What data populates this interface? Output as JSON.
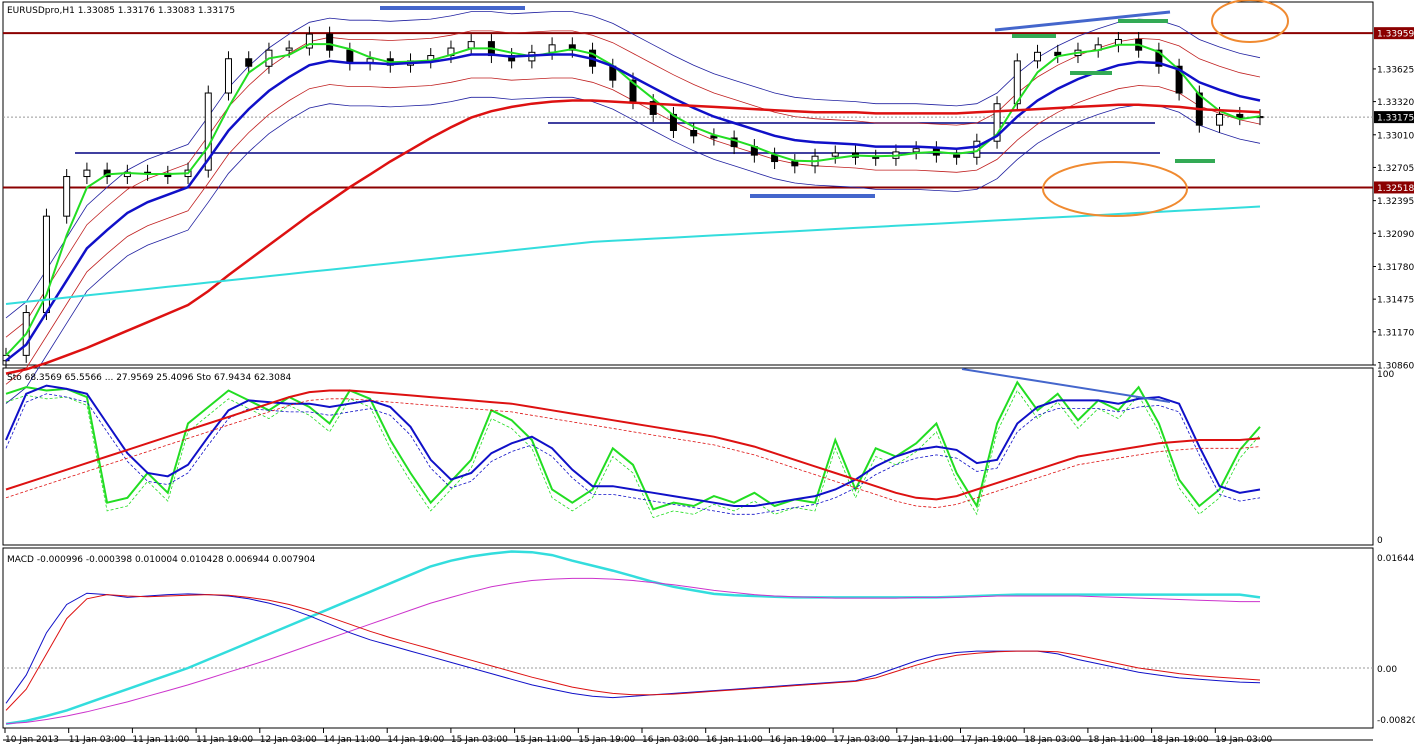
{
  "chart_data": [
    {
      "type": "line",
      "title": "EURUSDpro,H1  1.33085 1.33176 1.33083 1.33175",
      "yticks": [
        "1.33959",
        "1.33625",
        "1.33320",
        "1.33175",
        "1.33010",
        "1.32705",
        "1.32518",
        "1.32395",
        "1.32090",
        "1.31780",
        "1.31475",
        "1.31170",
        "1.30860"
      ],
      "highlighted_levels": [
        {
          "value": "1.33959",
          "color": "#8b0000"
        },
        {
          "value": "1.33175",
          "color": "#000000"
        },
        {
          "value": "1.32518",
          "color": "#8b0000"
        }
      ],
      "series": [
        {
          "values": [
            1.3095,
            1.3135,
            1.3225,
            1.3262,
            1.3268,
            1.3262,
            1.3266,
            1.3265,
            1.3262,
            1.3268,
            1.334,
            1.3372,
            1.3365,
            1.338,
            1.3382,
            1.3395,
            1.338,
            1.3368,
            1.3372,
            1.3366,
            1.337,
            1.3375,
            1.3382,
            1.3388,
            1.3375,
            1.337,
            1.3378,
            1.3385,
            1.338,
            1.3365,
            1.3352,
            1.3332,
            1.332,
            1.3305,
            1.33,
            1.3298,
            1.329,
            1.3282,
            1.3276,
            1.3272,
            1.3281,
            1.3284,
            1.328,
            1.3279,
            1.3285,
            1.3288,
            1.3282,
            1.328,
            1.3295,
            1.333,
            1.337,
            1.3378,
            1.3375,
            1.338,
            1.3385,
            1.339,
            1.338,
            1.3365,
            1.334,
            1.331,
            1.332,
            1.3317,
            1.3318
          ]
        },
        {
          "values": [
            1.309,
            1.3105,
            1.3135,
            1.3165,
            1.3195,
            1.3212,
            1.3228,
            1.3238,
            1.3245,
            1.3252,
            1.3278,
            1.3305,
            1.3325,
            1.3342,
            1.3355,
            1.3366,
            1.337,
            1.3368,
            1.3368,
            1.3367,
            1.3368,
            1.3369,
            1.3372,
            1.3376,
            1.3376,
            1.3374,
            1.3375,
            1.3376,
            1.3376,
            1.3372,
            1.3365,
            1.3355,
            1.3345,
            1.3335,
            1.3326,
            1.3318,
            1.3312,
            1.3306,
            1.33,
            1.3296,
            1.3294,
            1.3293,
            1.3292,
            1.329,
            1.329,
            1.329,
            1.3289,
            1.3288,
            1.329,
            1.33,
            1.3318,
            1.3333,
            1.3344,
            1.3353,
            1.336,
            1.3366,
            1.3369,
            1.3368,
            1.3362,
            1.335,
            1.3343,
            1.3337,
            1.3333
          ]
        },
        {
          "values": [
            1.3078,
            1.3082,
            1.3088,
            1.3095,
            1.3102,
            1.311,
            1.3118,
            1.3126,
            1.3134,
            1.3142,
            1.3155,
            1.317,
            1.3184,
            1.3198,
            1.3212,
            1.3226,
            1.3239,
            1.3252,
            1.3264,
            1.3276,
            1.3287,
            1.3298,
            1.3308,
            1.3317,
            1.3323,
            1.3327,
            1.333,
            1.3332,
            1.3333,
            1.3333,
            1.3332,
            1.3331,
            1.333,
            1.3329,
            1.3328,
            1.3327,
            1.3326,
            1.3325,
            1.3324,
            1.3323,
            1.3322,
            1.3322,
            1.3322,
            1.3321,
            1.3321,
            1.3321,
            1.3321,
            1.3321,
            1.3322,
            1.3323,
            1.3324,
            1.3325,
            1.3326,
            1.3327,
            1.3328,
            1.3329,
            1.3329,
            1.3328,
            1.3327,
            1.3325,
            1.3324,
            1.3323,
            1.3322
          ]
        },
        {
          "values": [
            1.3143,
            1.3145,
            1.3147,
            1.3149,
            1.3151,
            1.3153,
            1.3155,
            1.3157,
            1.3159,
            1.3161,
            1.3163,
            1.3165,
            1.3167,
            1.3169,
            1.3171,
            1.3173,
            1.3175,
            1.3177,
            1.3179,
            1.3181,
            1.3183,
            1.3185,
            1.3187,
            1.3189,
            1.3191,
            1.3193,
            1.3195,
            1.3197,
            1.3199,
            1.3201,
            1.3202,
            1.3203,
            1.3204,
            1.3205,
            1.3206,
            1.3207,
            1.3208,
            1.3209,
            1.321,
            1.3211,
            1.3212,
            1.3213,
            1.3214,
            1.3215,
            1.3216,
            1.3217,
            1.3218,
            1.3219,
            1.322,
            1.3221,
            1.3222,
            1.3223,
            1.3224,
            1.3225,
            1.3226,
            1.3227,
            1.3228,
            1.3229,
            1.323,
            1.3231,
            1.3232,
            1.3233,
            1.3234
          ]
        }
      ]
    },
    {
      "type": "line",
      "title": "Sto 68.3569 65.5566 ... 27.9569 25.4096  Sto 67.9434 62.3084",
      "yticks": [
        "100",
        "0"
      ],
      "ylim": [
        0,
        100
      ],
      "series": [
        {
          "values": [
            88,
            92,
            90,
            91,
            86,
            22,
            25,
            40,
            28,
            70,
            80,
            90,
            84,
            78,
            86,
            80,
            70,
            90,
            85,
            60,
            40,
            22,
            35,
            48,
            78,
            72,
            60,
            30,
            22,
            30,
            55,
            45,
            18,
            22,
            20,
            26,
            22,
            28,
            20,
            24,
            22,
            60,
            30,
            55,
            50,
            58,
            70,
            40,
            20,
            70,
            95,
            78,
            88,
            72,
            84,
            78,
            92,
            70,
            36,
            20,
            30,
            54,
            68
          ]
        },
        {
          "values": [
            60,
            88,
            93,
            91,
            88,
            70,
            52,
            40,
            38,
            45,
            62,
            78,
            84,
            83,
            82,
            82,
            80,
            82,
            84,
            80,
            68,
            48,
            36,
            40,
            52,
            58,
            62,
            55,
            42,
            32,
            32,
            30,
            28,
            26,
            24,
            22,
            20,
            20,
            22,
            24,
            26,
            30,
            36,
            44,
            50,
            54,
            56,
            54,
            46,
            48,
            70,
            80,
            84,
            84,
            84,
            82,
            85,
            86,
            82,
            56,
            32,
            28,
            30
          ]
        },
        {
          "values": [
            30,
            34,
            38,
            42,
            46,
            50,
            54,
            58,
            62,
            66,
            70,
            74,
            78,
            82,
            86,
            89,
            90,
            90,
            89,
            88,
            87,
            86,
            85,
            84,
            83,
            82,
            80,
            78,
            76,
            74,
            72,
            70,
            68,
            66,
            64,
            62,
            59,
            56,
            52,
            48,
            44,
            40,
            36,
            32,
            28,
            25,
            24,
            26,
            30,
            34,
            38,
            42,
            46,
            50,
            52,
            54,
            56,
            58,
            59,
            60,
            60,
            60,
            61
          ]
        }
      ]
    },
    {
      "type": "line",
      "title": "MACD -0.000996 -0.000398 0.010004 0.010428 0.006944 0.007904",
      "yticks": [
        "0.016445",
        "0.00",
        "-0.008207"
      ],
      "series": [
        {
          "values": [
            -0.0079,
            -0.0075,
            -0.0068,
            -0.006,
            -0.005,
            -0.004,
            -0.003,
            -0.002,
            -0.001,
            0.0,
            0.0012,
            0.0024,
            0.0036,
            0.0048,
            0.006,
            0.0072,
            0.0084,
            0.0096,
            0.0108,
            0.012,
            0.0132,
            0.0144,
            0.0152,
            0.0158,
            0.0162,
            0.0165,
            0.0164,
            0.016,
            0.0152,
            0.0145,
            0.0138,
            0.013,
            0.0122,
            0.0115,
            0.011,
            0.0105,
            0.0103,
            0.0102,
            0.0101,
            0.01,
            0.01,
            0.01,
            0.01,
            0.01,
            0.01,
            0.01,
            0.01,
            0.0101,
            0.0102,
            0.0103,
            0.0104,
            0.0104,
            0.0104,
            0.0104,
            0.0104,
            0.0104,
            0.0104,
            0.0104,
            0.0104,
            0.0104,
            0.0104,
            0.0104,
            0.01
          ]
        },
        {
          "values": [
            -0.0079,
            -0.0077,
            -0.0073,
            -0.0068,
            -0.0062,
            -0.0055,
            -0.0048,
            -0.004,
            -0.0032,
            -0.0024,
            -0.0015,
            -0.0006,
            0.0003,
            0.0012,
            0.0022,
            0.0032,
            0.0042,
            0.0052,
            0.0062,
            0.0072,
            0.0082,
            0.0092,
            0.01,
            0.0108,
            0.0115,
            0.012,
            0.0124,
            0.0126,
            0.0127,
            0.0127,
            0.0126,
            0.0124,
            0.0121,
            0.0118,
            0.0114,
            0.011,
            0.0107,
            0.0104,
            0.0102,
            0.0101,
            0.01,
            0.0099,
            0.0099,
            0.0099,
            0.0099,
            0.01,
            0.01,
            0.01,
            0.0101,
            0.0102,
            0.0102,
            0.0102,
            0.0102,
            0.0102,
            0.0101,
            0.01,
            0.0099,
            0.0098,
            0.0097,
            0.0096,
            0.0095,
            0.0094,
            0.0094
          ]
        },
        {
          "values": [
            -0.005,
            -0.001,
            0.005,
            0.009,
            0.0106,
            0.0104,
            0.01,
            0.0102,
            0.0104,
            0.0105,
            0.0104,
            0.0102,
            0.0098,
            0.0092,
            0.0084,
            0.0074,
            0.0062,
            0.005,
            0.004,
            0.0032,
            0.0024,
            0.0016,
            0.0008,
            0.0,
            -0.0008,
            -0.0016,
            -0.0024,
            -0.003,
            -0.0036,
            -0.004,
            -0.0042,
            -0.004,
            -0.0038,
            -0.0036,
            -0.0034,
            -0.0032,
            -0.003,
            -0.0028,
            -0.0026,
            -0.0024,
            -0.0022,
            -0.002,
            -0.0018,
            -0.001,
            0.0,
            0.001,
            0.0018,
            0.0022,
            0.0024,
            0.0024,
            0.0024,
            0.0024,
            0.002,
            0.0012,
            0.0006,
            0.0,
            -0.0006,
            -0.001,
            -0.0014,
            -0.0016,
            -0.0018,
            -0.002,
            -0.0021
          ]
        },
        {
          "values": [
            -0.006,
            -0.003,
            0.002,
            0.007,
            0.0098,
            0.0104,
            0.0102,
            0.0101,
            0.0102,
            0.0103,
            0.0104,
            0.0103,
            0.01,
            0.0096,
            0.009,
            0.0082,
            0.0072,
            0.0062,
            0.0052,
            0.0043,
            0.0035,
            0.0027,
            0.0019,
            0.0011,
            0.0003,
            -0.0005,
            -0.0013,
            -0.002,
            -0.0027,
            -0.0032,
            -0.0036,
            -0.0038,
            -0.0038,
            -0.0037,
            -0.0035,
            -0.0033,
            -0.0031,
            -0.0029,
            -0.0027,
            -0.0025,
            -0.0023,
            -0.0021,
            -0.0019,
            -0.0014,
            -0.0005,
            0.0004,
            0.0012,
            0.0018,
            0.0021,
            0.0023,
            0.0024,
            0.0024,
            0.0023,
            0.0018,
            0.0012,
            0.0006,
            0.0,
            -0.0004,
            -0.0008,
            -0.0011,
            -0.0013,
            -0.0015,
            -0.0017
          ]
        }
      ]
    }
  ],
  "xticks": [
    "10 Jan 2013",
    "11 Jan 03:00",
    "11 Jan 11:00",
    "11 Jan 19:00",
    "12 Jan 03:00",
    "14 Jan 11:00",
    "14 Jan 19:00",
    "15 Jan 03:00",
    "15 Jan 11:00",
    "15 Jan 19:00",
    "16 Jan 03:00",
    "16 Jan 11:00",
    "16 Jan 19:00",
    "17 Jan 03:00",
    "17 Jan 11:00",
    "17 Jan 19:00",
    "18 Jan 03:00",
    "18 Jan 11:00",
    "18 Jan 19:00",
    "19 Jan 03:00"
  ],
  "colors": {
    "candle_up": "#ffffff",
    "candle_down": "#000000",
    "ma_fast": "#22dd22",
    "ma_mid": "#1010c8",
    "ma_slow": "#dd1111",
    "ma_long": "#33dddd",
    "level_line": "#8b0000",
    "annotation_blue": "#4466cc",
    "annotation_green": "#33aa55",
    "annotation_orange": "#f08a30"
  }
}
